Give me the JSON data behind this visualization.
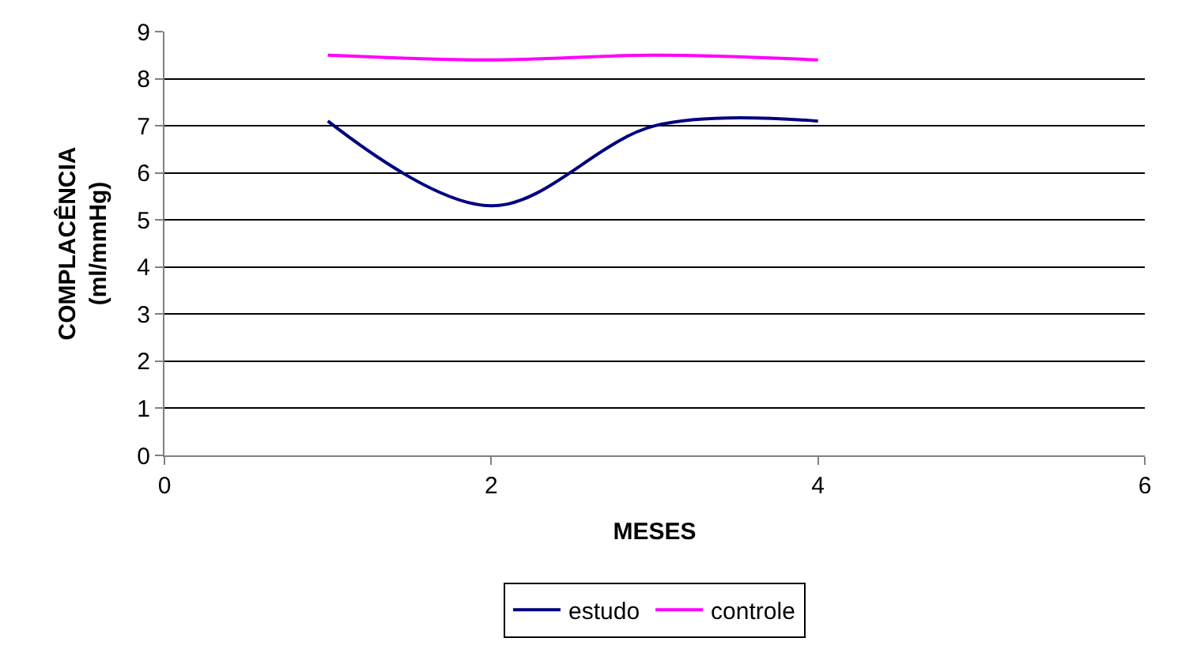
{
  "chart_data": {
    "type": "line",
    "xlabel": "MESES",
    "ylabel": "COMPLACÊNCIA\n(ml/mmHg)",
    "x": [
      1,
      2,
      3,
      4
    ],
    "series": [
      {
        "name": "estudo",
        "color": "#000080",
        "values": [
          7.1,
          5.3,
          7.0,
          7.1
        ]
      },
      {
        "name": "controle",
        "color": "#ff00ff",
        "values": [
          8.5,
          8.4,
          8.5,
          8.4
        ]
      }
    ],
    "xlim": [
      0,
      6
    ],
    "xticks": [
      0,
      2,
      4,
      6
    ],
    "ylim": [
      0,
      9
    ],
    "yticks": [
      0,
      1,
      2,
      3,
      4,
      5,
      6,
      7,
      8,
      9
    ],
    "grid": "y",
    "legend": "bottom",
    "marker": "none",
    "line_style": "solid"
  }
}
